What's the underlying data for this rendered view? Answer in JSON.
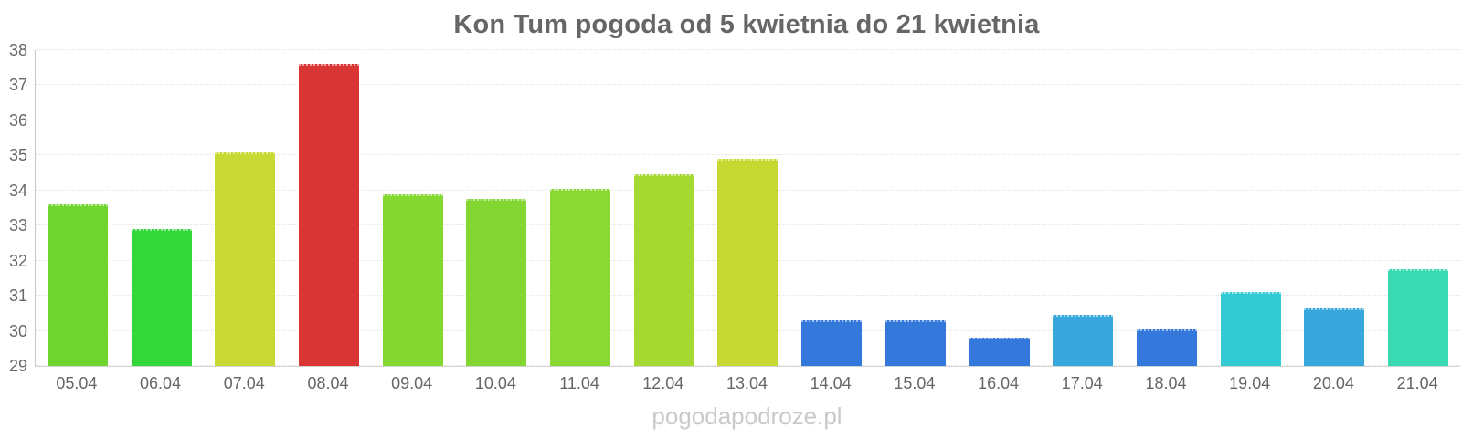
{
  "watermark": "pogodapodroze.pl",
  "style": {
    "title_color": "#666666",
    "axis_label_color": "#666666",
    "gridline_color": "#e3e3e3",
    "y_axis_line_color": "#c9c9c9",
    "x_axis_line_color": "#d4d4d4",
    "watermark_color": "#c9c9c9",
    "background": "#ffffff"
  },
  "chart_data": {
    "type": "bar",
    "title": "Kon Tum pogoda od 5 kwietnia do 21 kwietnia",
    "xlabel": "",
    "ylabel": "",
    "grid": true,
    "legend": false,
    "ylim": [
      29,
      38
    ],
    "yticks": [
      29,
      30,
      31,
      32,
      33,
      34,
      35,
      36,
      37,
      38
    ],
    "categories": [
      "05.04",
      "06.04",
      "07.04",
      "08.04",
      "09.04",
      "10.04",
      "11.04",
      "12.04",
      "13.04",
      "14.04",
      "15.04",
      "16.04",
      "17.04",
      "18.04",
      "19.04",
      "20.04",
      "21.04"
    ],
    "values": [
      33.6,
      32.9,
      35.1,
      37.6,
      33.9,
      33.75,
      34.05,
      34.45,
      34.9,
      30.3,
      30.3,
      29.8,
      30.45,
      30.05,
      31.1,
      30.65,
      31.75
    ],
    "bar_colors": [
      "#70d52f",
      "#33d73a",
      "#c9d934",
      "#d93535",
      "#85d732",
      "#84d633",
      "#8ad833",
      "#a6d832",
      "#c6d933",
      "#3478dc",
      "#3478dc",
      "#3478dc",
      "#38a7db",
      "#3478dc",
      "#32cbd4",
      "#38a7db",
      "#39d9b1"
    ]
  }
}
